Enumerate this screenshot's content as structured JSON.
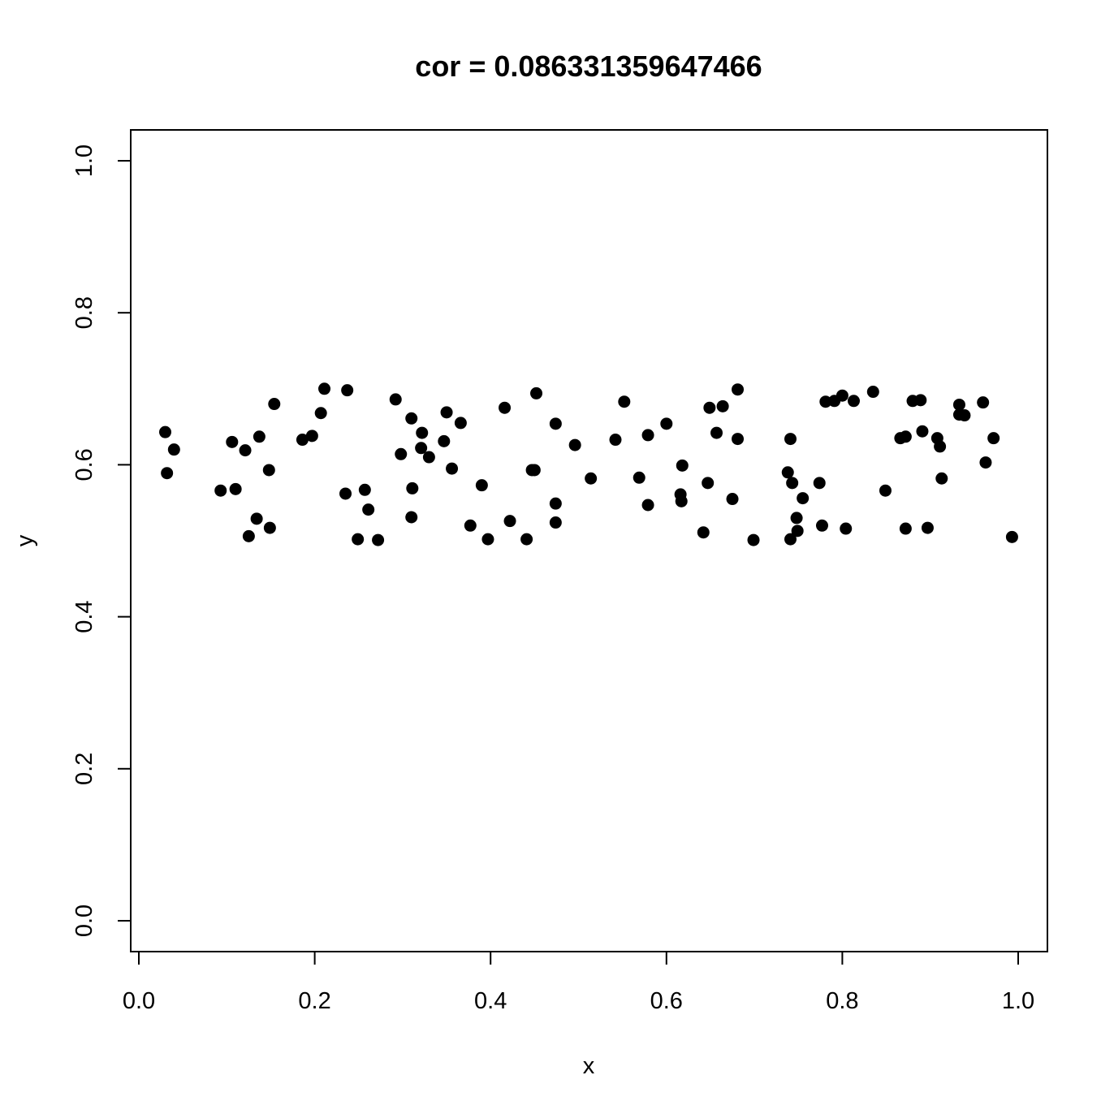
{
  "chart_data": {
    "type": "scatter",
    "title": "cor = 0.086331359647466",
    "xlabel": "x",
    "ylabel": "y",
    "xlim": [
      0,
      1
    ],
    "ylim": [
      0,
      1
    ],
    "x_ticks": [
      "0.0",
      "0.2",
      "0.4",
      "0.6",
      "0.8",
      "1.0"
    ],
    "y_ticks": [
      "0.0",
      "0.2",
      "0.4",
      "0.6",
      "0.8",
      "1.0"
    ],
    "grid": false,
    "legend": "none",
    "point_color": "#000000",
    "points": [
      [
        0.03,
        0.643
      ],
      [
        0.032,
        0.589
      ],
      [
        0.04,
        0.62
      ],
      [
        0.093,
        0.566
      ],
      [
        0.106,
        0.63
      ],
      [
        0.11,
        0.568
      ],
      [
        0.121,
        0.619
      ],
      [
        0.125,
        0.506
      ],
      [
        0.134,
        0.529
      ],
      [
        0.137,
        0.637
      ],
      [
        0.148,
        0.593
      ],
      [
        0.149,
        0.517
      ],
      [
        0.154,
        0.68
      ],
      [
        0.186,
        0.633
      ],
      [
        0.197,
        0.638
      ],
      [
        0.207,
        0.668
      ],
      [
        0.211,
        0.7
      ],
      [
        0.235,
        0.562
      ],
      [
        0.237,
        0.698
      ],
      [
        0.249,
        0.502
      ],
      [
        0.257,
        0.567
      ],
      [
        0.261,
        0.541
      ],
      [
        0.272,
        0.501
      ],
      [
        0.292,
        0.686
      ],
      [
        0.298,
        0.614
      ],
      [
        0.31,
        0.661
      ],
      [
        0.311,
        0.569
      ],
      [
        0.31,
        0.531
      ],
      [
        0.321,
        0.622
      ],
      [
        0.322,
        0.642
      ],
      [
        0.33,
        0.61
      ],
      [
        0.347,
        0.631
      ],
      [
        0.35,
        0.669
      ],
      [
        0.356,
        0.595
      ],
      [
        0.366,
        0.655
      ],
      [
        0.377,
        0.52
      ],
      [
        0.39,
        0.573
      ],
      [
        0.397,
        0.502
      ],
      [
        0.416,
        0.675
      ],
      [
        0.422,
        0.526
      ],
      [
        0.441,
        0.502
      ],
      [
        0.447,
        0.593
      ],
      [
        0.45,
        0.593
      ],
      [
        0.452,
        0.694
      ],
      [
        0.474,
        0.654
      ],
      [
        0.474,
        0.549
      ],
      [
        0.474,
        0.524
      ],
      [
        0.496,
        0.626
      ],
      [
        0.514,
        0.582
      ],
      [
        0.542,
        0.633
      ],
      [
        0.552,
        0.683
      ],
      [
        0.569,
        0.583
      ],
      [
        0.579,
        0.639
      ],
      [
        0.579,
        0.547
      ],
      [
        0.6,
        0.654
      ],
      [
        0.616,
        0.561
      ],
      [
        0.617,
        0.552
      ],
      [
        0.618,
        0.599
      ],
      [
        0.642,
        0.511
      ],
      [
        0.647,
        0.576
      ],
      [
        0.649,
        0.675
      ],
      [
        0.657,
        0.642
      ],
      [
        0.664,
        0.677
      ],
      [
        0.675,
        0.555
      ],
      [
        0.681,
        0.634
      ],
      [
        0.681,
        0.699
      ],
      [
        0.699,
        0.501
      ],
      [
        0.738,
        0.59
      ],
      [
        0.741,
        0.634
      ],
      [
        0.741,
        0.502
      ],
      [
        0.743,
        0.576
      ],
      [
        0.748,
        0.53
      ],
      [
        0.749,
        0.513
      ],
      [
        0.755,
        0.556
      ],
      [
        0.774,
        0.576
      ],
      [
        0.777,
        0.52
      ],
      [
        0.781,
        0.683
      ],
      [
        0.791,
        0.684
      ],
      [
        0.8,
        0.691
      ],
      [
        0.804,
        0.516
      ],
      [
        0.813,
        0.684
      ],
      [
        0.835,
        0.696
      ],
      [
        0.849,
        0.566
      ],
      [
        0.866,
        0.635
      ],
      [
        0.872,
        0.637
      ],
      [
        0.872,
        0.516
      ],
      [
        0.88,
        0.684
      ],
      [
        0.889,
        0.685
      ],
      [
        0.891,
        0.644
      ],
      [
        0.897,
        0.517
      ],
      [
        0.908,
        0.635
      ],
      [
        0.911,
        0.624
      ],
      [
        0.913,
        0.582
      ],
      [
        0.933,
        0.679
      ],
      [
        0.933,
        0.666
      ],
      [
        0.939,
        0.665
      ],
      [
        0.96,
        0.682
      ],
      [
        0.963,
        0.603
      ],
      [
        0.972,
        0.635
      ],
      [
        0.993,
        0.505
      ]
    ]
  }
}
